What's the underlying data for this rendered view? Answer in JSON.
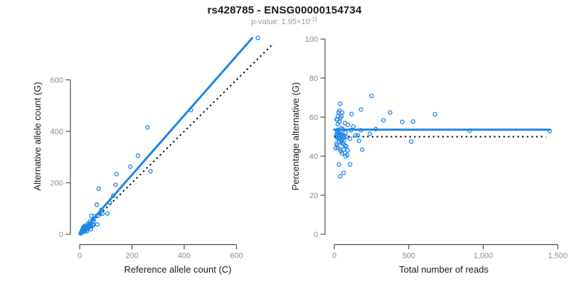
{
  "header": {
    "title": "rs428785 - ENSG00000154734",
    "pvalue_prefix": "p-value: ",
    "pvalue_mantissa": "1.95×10",
    "pvalue_exponent": "-11"
  },
  "colors": {
    "accent_blue": "#1f86e8",
    "identity_line": "#000000",
    "axis": "#4d4d4d",
    "tick_label": "#8c8c8c",
    "axis_title": "#1a1a1a",
    "title": "#1a1a1a",
    "subtitle": "#9b9b9b",
    "background": "#ffffff"
  },
  "chart_data": {
    "type": "scatter",
    "title": "rs428785 - ENSG00000154734",
    "subtitle": "p-value: 1.95×10-11",
    "samples_columns": [
      "total_reads",
      "pct_alternative_G"
    ],
    "samples": [
      [
        1445,
        52.8
      ],
      [
        908,
        53.1
      ],
      [
        675,
        61.5
      ],
      [
        529,
        57.8
      ],
      [
        516,
        47.5
      ],
      [
        456,
        57.6
      ],
      [
        375,
        62.4
      ],
      [
        330,
        58.4
      ],
      [
        278,
        53.9
      ],
      [
        250,
        70.9
      ],
      [
        238,
        51.5
      ],
      [
        187,
        43.4
      ],
      [
        180,
        63.9
      ],
      [
        178,
        53.3
      ],
      [
        167,
        47.9
      ],
      [
        158,
        50.7
      ],
      [
        143,
        50.7
      ],
      [
        128,
        55.2
      ],
      [
        116,
        61.6
      ],
      [
        111,
        53.3
      ],
      [
        106,
        49.0
      ],
      [
        106,
        35.8
      ],
      [
        91,
        56.0
      ],
      [
        90,
        43.0
      ],
      [
        87,
        40.6
      ],
      [
        80,
        49.9
      ],
      [
        80,
        45.1
      ],
      [
        76,
        52.1
      ],
      [
        75,
        40.0
      ],
      [
        72,
        57.0
      ],
      [
        72,
        45.5
      ],
      [
        72,
        41.8
      ],
      [
        68,
        49.7
      ],
      [
        64,
        47.9
      ],
      [
        63,
        43.4
      ],
      [
        63,
        31.5
      ],
      [
        60,
        46.1
      ],
      [
        58,
        50.5
      ],
      [
        56,
        53.9
      ],
      [
        53,
        62.4
      ],
      [
        53,
        50.3
      ],
      [
        53,
        46.7
      ],
      [
        53,
        41.5
      ],
      [
        50,
        48.0
      ],
      [
        48,
        60.4
      ],
      [
        48,
        54.3
      ],
      [
        48,
        51.2
      ],
      [
        47,
        47.5
      ],
      [
        44,
        53.0
      ],
      [
        43,
        48.5
      ],
      [
        43,
        42.6
      ],
      [
        40,
        66.9
      ],
      [
        40,
        59.6
      ],
      [
        40,
        43.6
      ],
      [
        40,
        29.7
      ],
      [
        38,
        51.0
      ],
      [
        35,
        63.3
      ],
      [
        35,
        57.6
      ],
      [
        34,
        49.0
      ],
      [
        33,
        51.9
      ],
      [
        32,
        47.3
      ],
      [
        32,
        35.8
      ],
      [
        30,
        50.0
      ],
      [
        29,
        62.4
      ],
      [
        26,
        52.0
      ],
      [
        24,
        60.4
      ],
      [
        24,
        56.4
      ],
      [
        24,
        53.6
      ],
      [
        24,
        49.1
      ],
      [
        22,
        44.2
      ],
      [
        21,
        58.8
      ],
      [
        20,
        45.8
      ],
      [
        18,
        52.4
      ],
      [
        16,
        58.8
      ],
      [
        16,
        51.2
      ],
      [
        14,
        46.5
      ],
      [
        12,
        50.0
      ],
      [
        8,
        44.2
      ]
    ],
    "panels": [
      {
        "id": "allele-counts",
        "type": "scatter",
        "xlabel": "Reference allele count (C)",
        "ylabel": "Alternative allele count (G)",
        "x_from": "total_reads*(100-pct)/100",
        "y_from": "total_reads*pct/100",
        "xticks": [
          0,
          200,
          400,
          600
        ],
        "xtick_labels": [
          "0",
          "200",
          "400",
          "600"
        ],
        "yticks": [
          0,
          200,
          400,
          600
        ],
        "ytick_labels": [
          "0",
          "200",
          "400",
          "600"
        ],
        "xlim": [
          0,
          745
        ],
        "ylim": [
          0,
          770
        ],
        "fit_line": {
          "slope": 1.155,
          "intercept": 0,
          "x_start": 0,
          "x_end": 660
        },
        "identity_line": {
          "slope": 1,
          "intercept": 0,
          "x_start": 0,
          "x_end": 742,
          "style": "dotted"
        },
        "grid": false,
        "legend": false
      },
      {
        "id": "percentage-vs-reads",
        "type": "scatter",
        "xlabel": "Total number of reads",
        "ylabel": "Percentage alternative (G)",
        "x_from": "total_reads",
        "y_from": "pct_alternative_G",
        "xticks": [
          0,
          500,
          1000,
          1500
        ],
        "xtick_labels": [
          "0",
          "500",
          "1,000",
          "1,500"
        ],
        "yticks": [
          0,
          20,
          40,
          60,
          80,
          100
        ],
        "ytick_labels": [
          "0",
          "20",
          "40",
          "60",
          "80",
          "100"
        ],
        "xlim": [
          0,
          1500
        ],
        "ylim": [
          0,
          100
        ],
        "fit_line": {
          "y": 53.6,
          "x_start": 0,
          "x_end": 1448
        },
        "identity_line": {
          "y": 50,
          "x_start": 0,
          "x_end": 1420,
          "style": "dotted"
        },
        "grid": false,
        "legend": false
      }
    ]
  }
}
